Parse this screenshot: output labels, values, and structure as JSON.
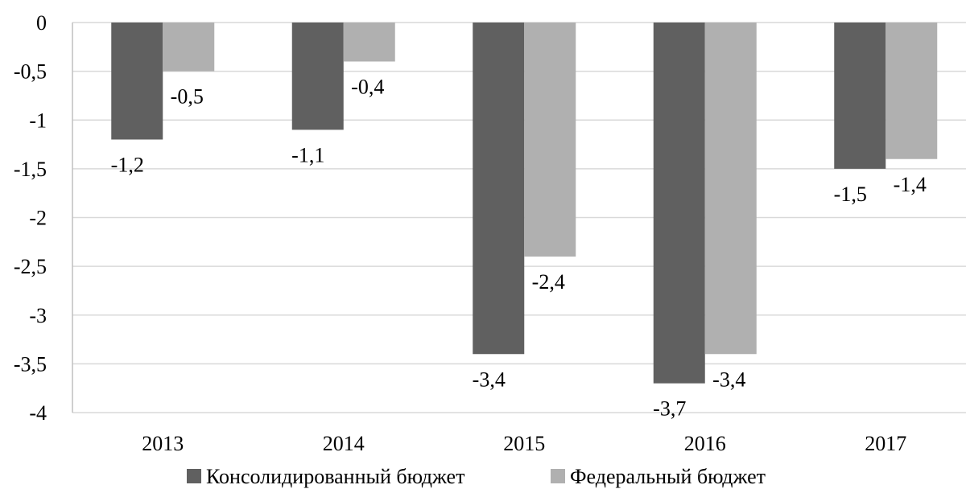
{
  "chart_data": {
    "type": "bar",
    "categories": [
      "2013",
      "2014",
      "2015",
      "2016",
      "2017"
    ],
    "series": [
      {
        "name": "Консолидированный бюджет",
        "values": [
          -1.2,
          -1.1,
          -3.4,
          -3.7,
          -1.5
        ],
        "labels": [
          "-1,2",
          "-1,1",
          "-3,4",
          "-3,7",
          "-1,5"
        ],
        "color": "#606060"
      },
      {
        "name": "Федеральный бюджет",
        "values": [
          -0.5,
          -0.4,
          -2.4,
          -3.4,
          -1.4
        ],
        "labels": [
          "-0,5",
          "-0,4",
          "-2,4",
          "-3,4",
          "-1,4"
        ],
        "color": "#b0b0b0"
      }
    ],
    "y_ticks": [
      0,
      -0.5,
      -1,
      -1.5,
      -2,
      -2.5,
      -3,
      -3.5,
      -4
    ],
    "y_tick_labels": [
      "0",
      "-0,5",
      "-1",
      "-1,5",
      "-2",
      "-2,5",
      "-3",
      "-3,5",
      "-4"
    ],
    "ylim": [
      -4,
      0
    ],
    "grid": true,
    "legend_position": "bottom"
  }
}
